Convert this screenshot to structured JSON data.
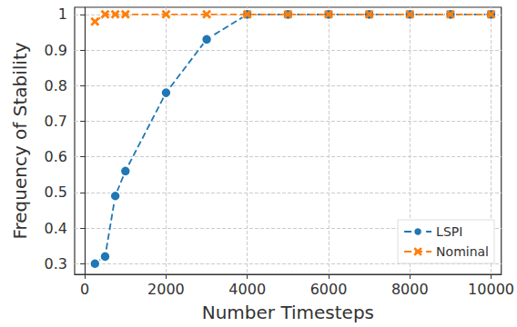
{
  "chart_data": {
    "type": "line",
    "x_label": "Number Timesteps",
    "y_label": "Frequency of Stability",
    "x": [
      250,
      500,
      750,
      1000,
      2000,
      3000,
      4000,
      5000,
      6000,
      7000,
      8000,
      9000,
      10000
    ],
    "series": [
      {
        "name": "LSPI",
        "color": "#1f77b4",
        "marker": "circle",
        "line_style": "dashed",
        "values": [
          0.3,
          0.32,
          0.49,
          0.56,
          0.78,
          0.93,
          1.0,
          1.0,
          1.0,
          1.0,
          1.0,
          1.0,
          1.0
        ]
      },
      {
        "name": "Nominal",
        "color": "#ff7f0e",
        "marker": "x",
        "line_style": "dashed",
        "values": [
          0.98,
          1.0,
          1.0,
          1.0,
          1.0,
          1.0,
          1.0,
          1.0,
          1.0,
          1.0,
          1.0,
          1.0,
          1.0
        ]
      }
    ],
    "xlim": [
      -250,
      10250
    ],
    "xticks": [
      0,
      2000,
      4000,
      6000,
      8000,
      10000
    ],
    "ylim": [
      0.27,
      1.02
    ],
    "yticks": [
      0.3,
      0.4,
      0.5,
      0.6,
      0.7,
      0.8,
      0.9,
      1.0
    ],
    "grid": true,
    "legend": "lower right"
  }
}
